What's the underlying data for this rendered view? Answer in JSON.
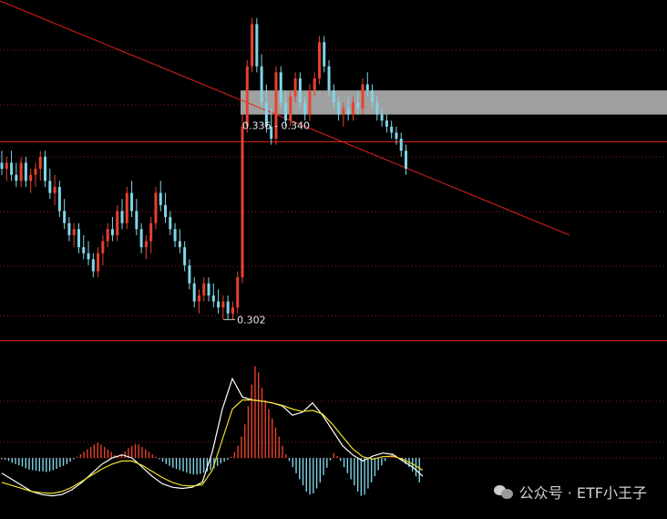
{
  "chart_data": [
    {
      "type": "candlestick",
      "panel": "price",
      "ylim": [
        0.296,
        0.355
      ],
      "grid": "dotted-red-horizontal",
      "up_color": "#e8412c",
      "down_color": "#7fd6e8",
      "candles": [
        [
          0.328,
          0.33,
          0.326,
          0.327
        ],
        [
          0.327,
          0.329,
          0.325,
          0.328
        ],
        [
          0.328,
          0.33,
          0.325,
          0.326
        ],
        [
          0.326,
          0.328,
          0.324,
          0.325
        ],
        [
          0.325,
          0.329,
          0.324,
          0.328
        ],
        [
          0.328,
          0.329,
          0.324,
          0.325
        ],
        [
          0.325,
          0.327,
          0.323,
          0.326
        ],
        [
          0.326,
          0.328,
          0.324,
          0.327
        ],
        [
          0.327,
          0.33,
          0.325,
          0.329
        ],
        [
          0.329,
          0.33,
          0.324,
          0.325
        ],
        [
          0.325,
          0.327,
          0.322,
          0.323
        ],
        [
          0.323,
          0.326,
          0.321,
          0.324
        ],
        [
          0.324,
          0.325,
          0.319,
          0.32
        ],
        [
          0.32,
          0.322,
          0.317,
          0.318
        ],
        [
          0.318,
          0.319,
          0.315,
          0.316
        ],
        [
          0.316,
          0.318,
          0.314,
          0.317
        ],
        [
          0.317,
          0.318,
          0.313,
          0.314
        ],
        [
          0.314,
          0.316,
          0.312,
          0.313
        ],
        [
          0.313,
          0.315,
          0.311,
          0.312
        ],
        [
          0.312,
          0.313,
          0.309,
          0.31
        ],
        [
          0.31,
          0.314,
          0.309,
          0.313
        ],
        [
          0.313,
          0.316,
          0.311,
          0.315
        ],
        [
          0.315,
          0.318,
          0.314,
          0.317
        ],
        [
          0.317,
          0.319,
          0.315,
          0.316
        ],
        [
          0.316,
          0.321,
          0.315,
          0.32
        ],
        [
          0.32,
          0.322,
          0.317,
          0.318
        ],
        [
          0.318,
          0.324,
          0.317,
          0.323
        ],
        [
          0.323,
          0.325,
          0.319,
          0.32
        ],
        [
          0.32,
          0.322,
          0.316,
          0.317
        ],
        [
          0.317,
          0.318,
          0.313,
          0.314
        ],
        [
          0.314,
          0.316,
          0.312,
          0.315
        ],
        [
          0.315,
          0.319,
          0.313,
          0.318
        ],
        [
          0.318,
          0.324,
          0.317,
          0.323
        ],
        [
          0.323,
          0.325,
          0.32,
          0.321
        ],
        [
          0.321,
          0.323,
          0.318,
          0.319
        ],
        [
          0.319,
          0.32,
          0.316,
          0.317
        ],
        [
          0.317,
          0.318,
          0.314,
          0.315
        ],
        [
          0.315,
          0.317,
          0.313,
          0.314
        ],
        [
          0.314,
          0.315,
          0.31,
          0.311
        ],
        [
          0.311,
          0.312,
          0.307,
          0.308
        ],
        [
          0.308,
          0.309,
          0.304,
          0.305
        ],
        [
          0.305,
          0.307,
          0.303,
          0.306
        ],
        [
          0.306,
          0.309,
          0.305,
          0.308
        ],
        [
          0.308,
          0.309,
          0.305,
          0.306
        ],
        [
          0.306,
          0.308,
          0.304,
          0.305
        ],
        [
          0.305,
          0.307,
          0.303,
          0.304
        ],
        [
          0.304,
          0.306,
          0.302,
          0.305
        ],
        [
          0.305,
          0.306,
          0.302,
          0.303
        ],
        [
          0.303,
          0.305,
          0.302,
          0.304
        ],
        [
          0.304,
          0.31,
          0.303,
          0.309
        ],
        [
          0.309,
          0.336,
          0.308,
          0.334
        ],
        [
          0.334,
          0.345,
          0.333,
          0.344
        ],
        [
          0.344,
          0.352,
          0.343,
          0.351
        ],
        [
          0.351,
          0.352,
          0.343,
          0.344
        ],
        [
          0.344,
          0.346,
          0.337,
          0.338
        ],
        [
          0.338,
          0.341,
          0.333,
          0.334
        ],
        [
          0.334,
          0.337,
          0.331,
          0.332
        ],
        [
          0.332,
          0.344,
          0.331,
          0.343
        ],
        [
          0.343,
          0.344,
          0.337,
          0.338
        ],
        [
          0.338,
          0.34,
          0.334,
          0.335
        ],
        [
          0.335,
          0.34,
          0.334,
          0.339
        ],
        [
          0.339,
          0.343,
          0.338,
          0.342
        ],
        [
          0.342,
          0.343,
          0.337,
          0.338
        ],
        [
          0.338,
          0.339,
          0.335,
          0.336
        ],
        [
          0.336,
          0.341,
          0.335,
          0.34
        ],
        [
          0.34,
          0.343,
          0.339,
          0.342
        ],
        [
          0.342,
          0.349,
          0.341,
          0.348
        ],
        [
          0.348,
          0.349,
          0.343,
          0.344
        ],
        [
          0.344,
          0.345,
          0.339,
          0.34
        ],
        [
          0.34,
          0.341,
          0.337,
          0.338
        ],
        [
          0.338,
          0.339,
          0.335,
          0.336
        ],
        [
          0.336,
          0.338,
          0.334,
          0.337
        ],
        [
          0.337,
          0.339,
          0.335,
          0.336
        ],
        [
          0.336,
          0.339,
          0.335,
          0.338
        ],
        [
          0.338,
          0.34,
          0.336,
          0.337
        ],
        [
          0.337,
          0.342,
          0.336,
          0.341
        ],
        [
          0.341,
          0.343,
          0.339,
          0.34
        ],
        [
          0.34,
          0.341,
          0.337,
          0.338
        ],
        [
          0.338,
          0.339,
          0.335,
          0.336
        ],
        [
          0.336,
          0.337,
          0.334,
          0.335
        ],
        [
          0.335,
          0.336,
          0.333,
          0.334
        ],
        [
          0.334,
          0.335,
          0.332,
          0.333
        ],
        [
          0.333,
          0.334,
          0.331,
          0.332
        ],
        [
          0.332,
          0.333,
          0.329,
          0.33
        ],
        [
          0.33,
          0.331,
          0.326,
          0.327
        ]
      ],
      "lines": [
        {
          "kind": "trendline",
          "color": "#e02020",
          "from": [
            -10,
            0.358
          ],
          "to": [
            118,
            0.316
          ]
        },
        {
          "kind": "horizontal",
          "color": "#e02020",
          "y": 0.3315
        },
        {
          "kind": "horizontal",
          "color": "#e02020",
          "y": 0.2985
        }
      ],
      "band": {
        "from_index": 50,
        "y_low": 0.336,
        "y_high": 0.34,
        "color": "#a0a0a0"
      },
      "annotations": [
        {
          "text": "0.336 - 0.340",
          "x": 50,
          "y": 0.336
        },
        {
          "text": "0.302",
          "x": 47,
          "y": 0.302
        }
      ]
    },
    {
      "type": "bar",
      "panel": "macd",
      "ylim": [
        -1,
        1.6
      ],
      "series": [
        {
          "values": [
            -0.02,
            -0.03,
            -0.05,
            -0.08,
            -0.1,
            -0.12,
            -0.14,
            -0.17,
            -0.19,
            -0.2,
            -0.21,
            -0.22,
            -0.22,
            -0.23,
            -0.22,
            -0.2,
            -0.18,
            -0.15,
            -0.13,
            -0.1,
            -0.06,
            -0.02,
            0.02,
            0.06,
            0.1,
            0.14,
            0.18,
            0.22,
            0.25,
            0.22,
            0.18,
            0.14,
            0.1,
            0.05,
            0.02,
            0.06,
            0.11,
            0.16,
            0.2,
            0.23,
            0.22,
            0.18,
            0.14,
            0.1,
            0.06,
            0.02,
            -0.02,
            -0.06,
            -0.1,
            -0.13,
            -0.16,
            -0.18,
            -0.2,
            -0.22,
            -0.24,
            -0.26,
            -0.27,
            -0.27,
            -0.26,
            -0.24,
            -0.22,
            -0.2,
            -0.17,
            -0.13,
            -0.09,
            -0.06,
            -0.03,
            0.02,
            0.1,
            0.2,
            0.35,
            0.55,
            0.85,
            1.2,
            1.5,
            1.4,
            1.15,
            0.95,
            0.8,
            0.65,
            0.5,
            0.35,
            0.2,
            0.06,
            -0.05,
            -0.15,
            -0.25,
            -0.35,
            -0.45,
            -0.55,
            -0.6,
            -0.58,
            -0.5,
            -0.4,
            -0.28,
            -0.16,
            -0.04,
            0.08,
            0.03,
            -0.05,
            -0.15,
            -0.25,
            -0.35,
            -0.45,
            -0.55,
            -0.62,
            -0.6,
            -0.5,
            -0.4,
            -0.3,
            -0.2,
            -0.12,
            -0.05,
            0.02,
            0.06,
            0.04,
            0.0,
            -0.05,
            -0.1,
            -0.15,
            -0.22,
            -0.3,
            -0.4
          ]
        },
        {
          "name": "DIF",
          "color": "#ffffff",
          "values": [
            -0.25,
            -0.35,
            -0.45,
            -0.55,
            -0.6,
            -0.62,
            -0.6,
            -0.52,
            -0.4,
            -0.25,
            -0.1,
            0.0,
            0.05,
            0.0,
            -0.15,
            -0.3,
            -0.42,
            -0.48,
            -0.5,
            -0.48,
            -0.4,
            0.1,
            0.8,
            1.3,
            1.0,
            0.95,
            0.93,
            0.9,
            0.85,
            0.7,
            0.75,
            0.9,
            0.7,
            0.45,
            0.2,
            0.05,
            -0.05,
            0.03,
            0.08,
            0.06,
            -0.05,
            -0.15,
            -0.3
          ]
        },
        {
          "name": "DEA",
          "color": "#f0e02a",
          "values": [
            -0.4,
            -0.45,
            -0.5,
            -0.55,
            -0.57,
            -0.58,
            -0.55,
            -0.48,
            -0.38,
            -0.28,
            -0.18,
            -0.1,
            -0.05,
            -0.05,
            -0.12,
            -0.22,
            -0.32,
            -0.4,
            -0.45,
            -0.46,
            -0.44,
            -0.2,
            0.3,
            0.8,
            0.95,
            0.95,
            0.93,
            0.9,
            0.86,
            0.8,
            0.76,
            0.78,
            0.72,
            0.55,
            0.35,
            0.15,
            0.02,
            -0.02,
            0.02,
            0.03,
            -0.02,
            -0.1,
            -0.2
          ]
        }
      ]
    }
  ],
  "watermark": {
    "icon": "wechat-icon",
    "text": "公众号 · ETF小王子"
  }
}
